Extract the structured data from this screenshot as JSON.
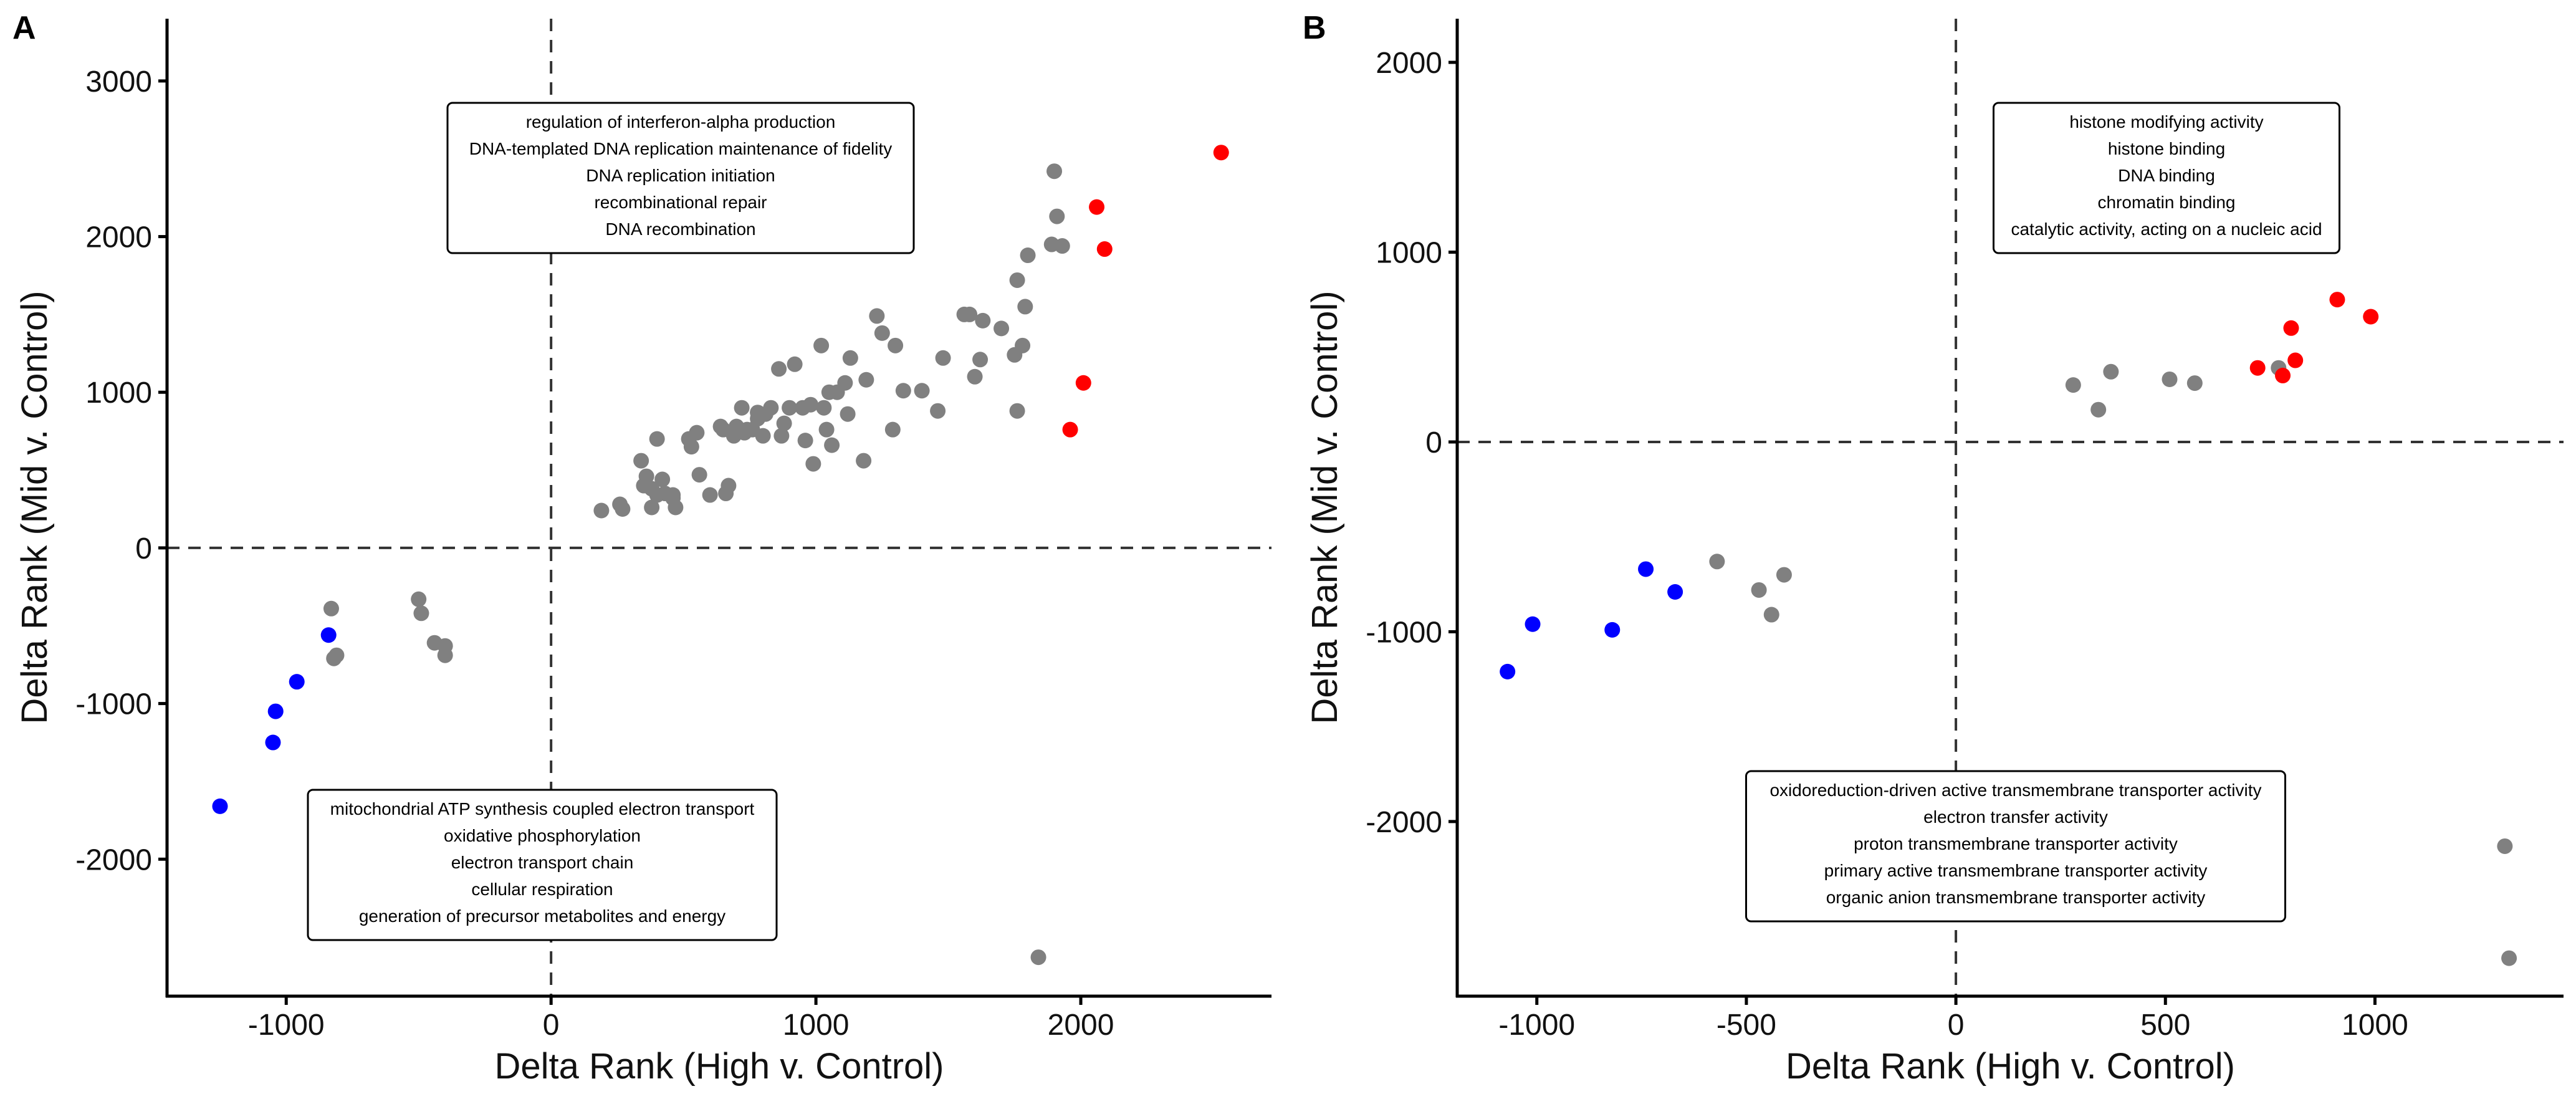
{
  "colors": {
    "grey": "#808080",
    "red": "#ff0000",
    "blue": "#0000ff"
  },
  "chart_data": [
    {
      "panel": "A",
      "type": "scatter",
      "xlabel": "Delta Rank (High v. Control)",
      "ylabel": "Delta Rank (Mid v. Control)",
      "xlim": [
        -1450,
        2720
      ],
      "ylim": [
        -2880,
        3400
      ],
      "xticks": [
        -1000,
        0,
        1000,
        2000
      ],
      "yticks": [
        -2000,
        -1000,
        0,
        1000,
        2000,
        3000
      ],
      "xtick_labels": [
        "-1000",
        "0",
        "1000",
        "2000"
      ],
      "ytick_labels": [
        "-2000",
        "-1000",
        "0",
        "1000",
        "2000",
        "3000"
      ],
      "ref_lines": {
        "x": 0,
        "y": 0
      },
      "annotations": [
        {
          "anchor": "upper",
          "lines": [
            "regulation of interferon-alpha production",
            "DNA-templated DNA replication maintenance of fidelity",
            "DNA replication initiation",
            "recombinational repair",
            "DNA recombination"
          ]
        },
        {
          "anchor": "lower",
          "lines": [
            "mitochondrial ATP synthesis coupled electron transport",
            "oxidative phosphorylation",
            "electron transport chain",
            "cellular respiration",
            "generation of precursor metabolites and energy"
          ]
        }
      ],
      "series": [
        {
          "color": "grey",
          "points": [
            [
              190,
              240
            ],
            [
              260,
              280
            ],
            [
              270,
              250
            ],
            [
              340,
              560
            ],
            [
              350,
              400
            ],
            [
              360,
              460
            ],
            [
              380,
              380
            ],
            [
              380,
              260
            ],
            [
              400,
              700
            ],
            [
              400,
              340
            ],
            [
              420,
              440
            ],
            [
              430,
              350
            ],
            [
              460,
              320
            ],
            [
              460,
              340
            ],
            [
              470,
              260
            ],
            [
              520,
              700
            ],
            [
              530,
              650
            ],
            [
              550,
              740
            ],
            [
              560,
              470
            ],
            [
              600,
              340
            ],
            [
              640,
              780
            ],
            [
              650,
              760
            ],
            [
              660,
              350
            ],
            [
              670,
              400
            ],
            [
              690,
              720
            ],
            [
              700,
              780
            ],
            [
              720,
              900
            ],
            [
              730,
              740
            ],
            [
              740,
              760
            ],
            [
              760,
              760
            ],
            [
              780,
              870
            ],
            [
              780,
              830
            ],
            [
              800,
              720
            ],
            [
              810,
              860
            ],
            [
              830,
              900
            ],
            [
              860,
              1150
            ],
            [
              870,
              720
            ],
            [
              880,
              800
            ],
            [
              900,
              900
            ],
            [
              920,
              1180
            ],
            [
              950,
              900
            ],
            [
              960,
              690
            ],
            [
              980,
              920
            ],
            [
              990,
              540
            ],
            [
              1020,
              1300
            ],
            [
              1030,
              900
            ],
            [
              1040,
              760
            ],
            [
              1050,
              1000
            ],
            [
              1060,
              660
            ],
            [
              1080,
              1000
            ],
            [
              1110,
              1060
            ],
            [
              1120,
              860
            ],
            [
              1130,
              1220
            ],
            [
              1180,
              560
            ],
            [
              1190,
              1080
            ],
            [
              1230,
              1490
            ],
            [
              1250,
              1380
            ],
            [
              1290,
              760
            ],
            [
              1300,
              1300
            ],
            [
              1330,
              1010
            ],
            [
              1400,
              1010
            ],
            [
              1460,
              880
            ],
            [
              1480,
              1220
            ],
            [
              1560,
              1500
            ],
            [
              1580,
              1500
            ],
            [
              1600,
              1100
            ],
            [
              1620,
              1210
            ],
            [
              1630,
              1460
            ],
            [
              1700,
              1410
            ],
            [
              1750,
              1240
            ],
            [
              1760,
              880
            ],
            [
              1760,
              1720
            ],
            [
              1780,
              1300
            ],
            [
              1790,
              1550
            ],
            [
              1800,
              1880
            ],
            [
              1840,
              -2630
            ],
            [
              1890,
              1950
            ],
            [
              1900,
              2420
            ],
            [
              1910,
              2130
            ],
            [
              1930,
              1940
            ],
            [
              -830,
              -390
            ],
            [
              -820,
              -710
            ],
            [
              -810,
              -690
            ],
            [
              -500,
              -330
            ],
            [
              -490,
              -420
            ],
            [
              -440,
              -610
            ],
            [
              -400,
              -630
            ],
            [
              -400,
              -690
            ]
          ]
        },
        {
          "color": "red",
          "points": [
            [
              1960,
              760
            ],
            [
              2010,
              1060
            ],
            [
              2060,
              2190
            ],
            [
              2090,
              1920
            ],
            [
              2530,
              2540
            ]
          ]
        },
        {
          "color": "blue",
          "points": [
            [
              -1250,
              -1660
            ],
            [
              -1050,
              -1250
            ],
            [
              -1040,
              -1050
            ],
            [
              -960,
              -860
            ],
            [
              -840,
              -560
            ]
          ]
        }
      ]
    },
    {
      "panel": "B",
      "type": "scatter",
      "xlabel": "Delta Rank (High v. Control)",
      "ylabel": "Delta Rank (Mid v. Control)",
      "xlim": [
        -1190,
        1450
      ],
      "ylim": [
        -2920,
        2230
      ],
      "xticks": [
        -1000,
        -500,
        0,
        500,
        1000
      ],
      "yticks": [
        -2000,
        -1000,
        0,
        1000,
        2000
      ],
      "xtick_labels": [
        "-1000",
        "-500",
        "0",
        "500",
        "1000"
      ],
      "ytick_labels": [
        "-2000",
        "-1000",
        "0",
        "1000",
        "2000"
      ],
      "ref_lines": {
        "x": 0,
        "y": 0
      },
      "annotations": [
        {
          "anchor": "upper",
          "lines": [
            "histone modifying activity",
            "histone binding",
            "DNA binding",
            "chromatin binding",
            "catalytic activity, acting on a nucleic acid"
          ]
        },
        {
          "anchor": "lower",
          "lines": [
            "oxidoreduction-driven active transmembrane transporter activity",
            "electron transfer activity",
            "proton transmembrane transporter activity",
            "primary active transmembrane transporter activity",
            "organic anion transmembrane transporter activity"
          ]
        }
      ],
      "series": [
        {
          "color": "grey",
          "points": [
            [
              280,
              300
            ],
            [
              340,
              170
            ],
            [
              370,
              370
            ],
            [
              510,
              330
            ],
            [
              570,
              310
            ],
            [
              770,
              390
            ],
            [
              -570,
              -630
            ],
            [
              -470,
              -780
            ],
            [
              -440,
              -910
            ],
            [
              -410,
              -700
            ],
            [
              1310,
              -2130
            ],
            [
              1320,
              -2720
            ]
          ]
        },
        {
          "color": "red",
          "points": [
            [
              720,
              390
            ],
            [
              780,
              350
            ],
            [
              800,
              600
            ],
            [
              810,
              430
            ],
            [
              910,
              750
            ],
            [
              990,
              660
            ]
          ]
        },
        {
          "color": "blue",
          "points": [
            [
              -1070,
              -1210
            ],
            [
              -1010,
              -960
            ],
            [
              -820,
              -990
            ],
            [
              -740,
              -670
            ],
            [
              -670,
              -790
            ]
          ]
        }
      ]
    }
  ]
}
